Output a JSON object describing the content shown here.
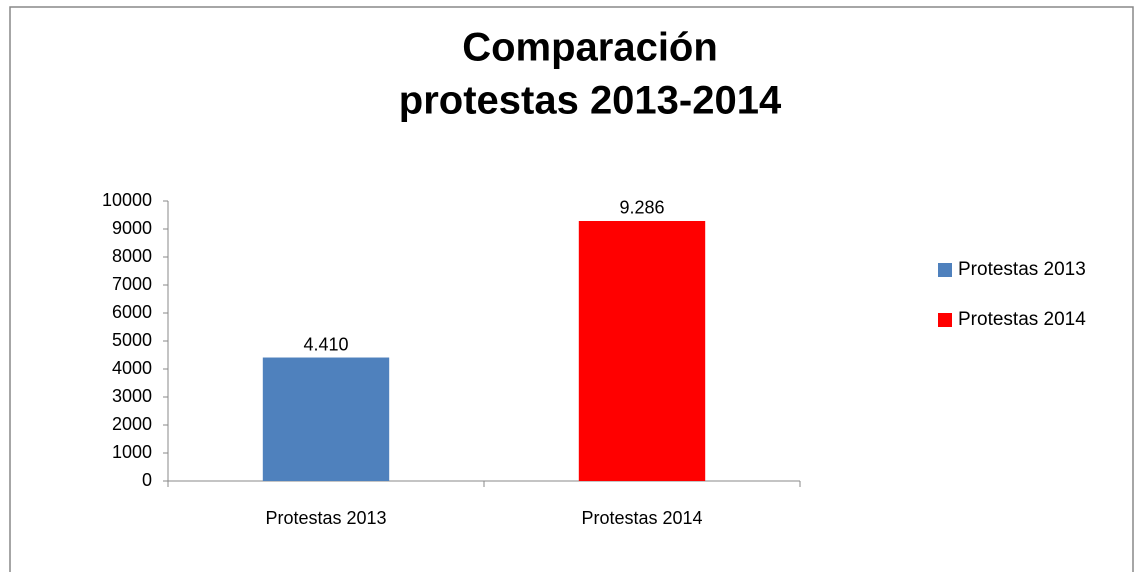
{
  "chart_data": {
    "type": "bar",
    "title": [
      "Comparación",
      "protestas 2013-2014"
    ],
    "categories": [
      "Protestas 2013",
      "Protestas 2014"
    ],
    "values": [
      4410,
      9286
    ],
    "value_labels": [
      "4.410",
      "9.286"
    ],
    "colors": [
      "#4f81bd",
      "#ff0000"
    ],
    "ylim": [
      0,
      10000
    ],
    "yticks": [
      0,
      1000,
      2000,
      3000,
      4000,
      5000,
      6000,
      7000,
      8000,
      9000,
      10000
    ],
    "legend": "right"
  }
}
